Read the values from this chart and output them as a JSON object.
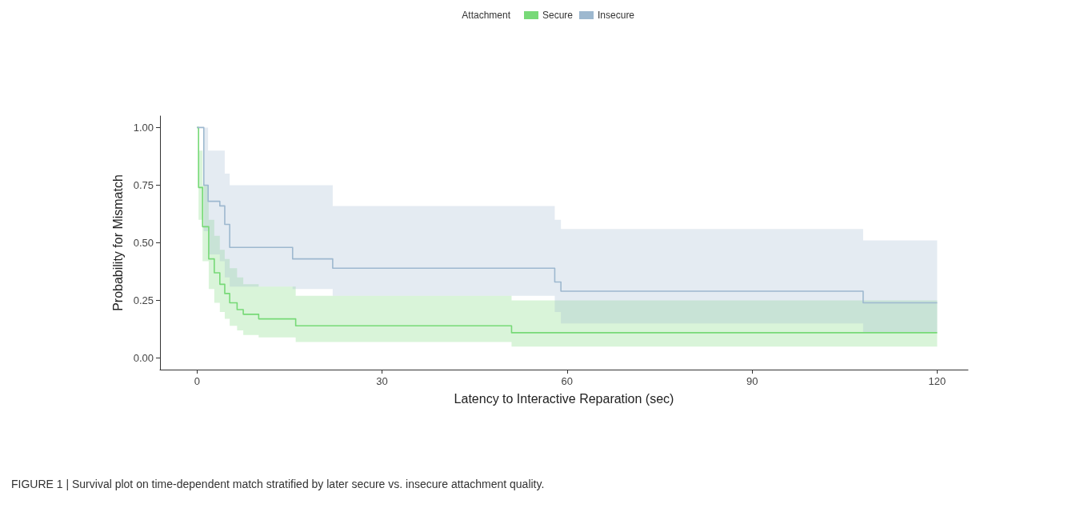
{
  "chart_data": {
    "type": "step",
    "xlabel": "Latency to Interactive Reparation (sec)",
    "ylabel": "Probability for Mismatch",
    "legend_title": "Attachment",
    "legend": "top",
    "grid": false,
    "marker": "none",
    "line_style": "solid",
    "xlim": [
      -6,
      125
    ],
    "xticks": [
      0,
      30,
      60,
      90,
      120
    ],
    "ylim": [
      -0.05,
      1.05
    ],
    "yticks": [
      {
        "value": 0,
        "label": "0.00"
      },
      {
        "value": 0.25,
        "label": "0.25"
      },
      {
        "value": 0.5,
        "label": "0.50"
      },
      {
        "value": 0.75,
        "label": "0.75"
      },
      {
        "value": 1,
        "label": "1.00"
      }
    ],
    "series": [
      {
        "name": "Secure",
        "color": "#77d977",
        "x": [
          0,
          0.25,
          0.9,
          1.9,
          2.8,
          3.7,
          4.5,
          5.3,
          6.5,
          7.5,
          10,
          16,
          51,
          120
        ],
        "values": [
          1,
          0.74,
          0.57,
          0.43,
          0.37,
          0.32,
          0.28,
          0.24,
          0.21,
          0.19,
          0.17,
          0.14,
          0.11,
          0.11
        ],
        "lower": [
          1,
          0.6,
          0.42,
          0.3,
          0.24,
          0.2,
          0.17,
          0.14,
          0.12,
          0.1,
          0.09,
          0.07,
          0.05,
          0.05
        ],
        "upper": [
          1,
          0.9,
          0.75,
          0.6,
          0.53,
          0.47,
          0.43,
          0.39,
          0.35,
          0.32,
          0.31,
          0.27,
          0.25,
          0.25
        ]
      },
      {
        "name": "Insecure",
        "color": "#9db8cf",
        "x": [
          0,
          1.1,
          1.8,
          3.7,
          4.5,
          5.3,
          15.5,
          22,
          58,
          59,
          108,
          120
        ],
        "values": [
          1,
          0.75,
          0.68,
          0.66,
          0.58,
          0.48,
          0.43,
          0.39,
          0.33,
          0.29,
          0.24,
          0.24
        ],
        "lower": [
          1,
          0.55,
          0.45,
          0.42,
          0.35,
          0.31,
          0.3,
          0.27,
          0.2,
          0.15,
          0.11,
          0.11
        ],
        "upper": [
          1,
          1,
          0.9,
          0.9,
          0.8,
          0.75,
          0.75,
          0.66,
          0.6,
          0.56,
          0.51,
          0.51
        ]
      }
    ],
    "annotations": [
      "FIGURE 1 | Survival plot on time-dependent match stratified by later secure vs. insecure attachment quality."
    ]
  }
}
